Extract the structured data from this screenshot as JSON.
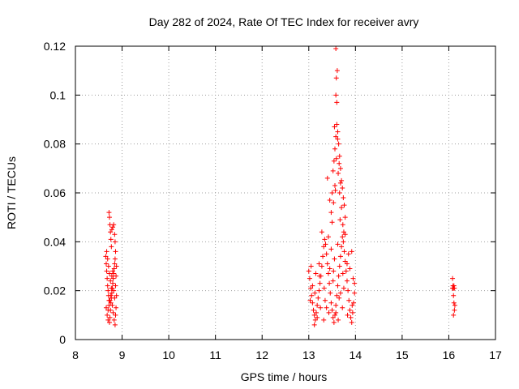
{
  "chart_data": {
    "type": "scatter",
    "title": "Day 282 of 2024, Rate Of TEC Index for receiver avry",
    "xlabel": "GPS time / hours",
    "ylabel": "ROTI / TECUs",
    "xlim": [
      8,
      17
    ],
    "ylim": [
      0,
      0.12
    ],
    "xticks": [
      "8",
      "9",
      "10",
      "11",
      "12",
      "13",
      "14",
      "15",
      "16",
      "17"
    ],
    "yticks": [
      "0",
      "0.02",
      "0.04",
      "0.06",
      "0.08",
      "0.1",
      "0.12"
    ],
    "grid": true,
    "marker": "+",
    "color": "#ff0000",
    "series": [
      {
        "name": "ROTI",
        "points": [
          [
            8.65,
            0.034
          ],
          [
            8.66,
            0.031
          ],
          [
            8.67,
            0.028
          ],
          [
            8.68,
            0.025
          ],
          [
            8.69,
            0.022
          ],
          [
            8.7,
            0.02
          ],
          [
            8.71,
            0.018
          ],
          [
            8.72,
            0.016
          ],
          [
            8.66,
            0.013
          ],
          [
            8.68,
            0.01
          ],
          [
            8.7,
            0.008
          ],
          [
            8.73,
            0.007
          ],
          [
            8.74,
            0.009
          ],
          [
            8.75,
            0.012
          ],
          [
            8.76,
            0.015
          ],
          [
            8.77,
            0.017
          ],
          [
            8.78,
            0.019
          ],
          [
            8.79,
            0.021
          ],
          [
            8.8,
            0.023
          ],
          [
            8.81,
            0.025
          ],
          [
            8.82,
            0.027
          ],
          [
            8.83,
            0.029
          ],
          [
            8.84,
            0.031
          ],
          [
            8.85,
            0.033
          ],
          [
            8.72,
            0.052
          ],
          [
            8.73,
            0.05
          ],
          [
            8.74,
            0.047
          ],
          [
            8.75,
            0.044
          ],
          [
            8.76,
            0.041
          ],
          [
            8.77,
            0.038
          ],
          [
            8.78,
            0.045
          ],
          [
            8.8,
            0.046
          ],
          [
            8.82,
            0.047
          ],
          [
            8.84,
            0.043
          ],
          [
            8.85,
            0.04
          ],
          [
            8.86,
            0.036
          ],
          [
            8.67,
            0.036
          ],
          [
            8.69,
            0.033
          ],
          [
            8.71,
            0.03
          ],
          [
            8.73,
            0.027
          ],
          [
            8.75,
            0.024
          ],
          [
            8.77,
            0.021
          ],
          [
            8.79,
            0.014
          ],
          [
            8.81,
            0.011
          ],
          [
            8.83,
            0.008
          ],
          [
            8.85,
            0.006
          ],
          [
            8.86,
            0.01
          ],
          [
            8.87,
            0.013
          ],
          [
            8.88,
            0.018
          ],
          [
            8.7,
            0.012
          ],
          [
            8.72,
            0.014
          ],
          [
            8.74,
            0.016
          ],
          [
            8.76,
            0.018
          ],
          [
            8.78,
            0.026
          ],
          [
            8.8,
            0.028
          ],
          [
            8.82,
            0.02
          ],
          [
            8.84,
            0.017
          ],
          [
            8.86,
            0.022
          ],
          [
            8.87,
            0.026
          ],
          [
            8.88,
            0.03
          ],
          [
            13.0,
            0.028
          ],
          [
            13.02,
            0.025
          ],
          [
            13.04,
            0.021
          ],
          [
            13.06,
            0.018
          ],
          [
            13.08,
            0.015
          ],
          [
            13.1,
            0.012
          ],
          [
            13.12,
            0.01
          ],
          [
            13.14,
            0.008
          ],
          [
            13.16,
            0.011
          ],
          [
            13.18,
            0.014
          ],
          [
            13.2,
            0.017
          ],
          [
            13.22,
            0.02
          ],
          [
            13.24,
            0.023
          ],
          [
            13.26,
            0.026
          ],
          [
            13.28,
            0.03
          ],
          [
            13.3,
            0.034
          ],
          [
            13.32,
            0.038
          ],
          [
            13.34,
            0.041
          ],
          [
            13.36,
            0.039
          ],
          [
            13.38,
            0.035
          ],
          [
            13.4,
            0.031
          ],
          [
            13.42,
            0.027
          ],
          [
            13.44,
            0.023
          ],
          [
            13.46,
            0.019
          ],
          [
            13.48,
            0.015
          ],
          [
            13.5,
            0.012
          ],
          [
            13.52,
            0.009
          ],
          [
            13.54,
            0.007
          ],
          [
            13.56,
            0.01
          ],
          [
            13.58,
            0.014
          ],
          [
            13.6,
            0.018
          ],
          [
            13.62,
            0.022
          ],
          [
            13.64,
            0.026
          ],
          [
            13.66,
            0.03
          ],
          [
            13.68,
            0.034
          ],
          [
            13.7,
            0.038
          ],
          [
            13.72,
            0.042
          ],
          [
            13.74,
            0.04
          ],
          [
            13.76,
            0.036
          ],
          [
            13.78,
            0.032
          ],
          [
            13.8,
            0.028
          ],
          [
            13.82,
            0.024
          ],
          [
            13.84,
            0.02
          ],
          [
            13.86,
            0.016
          ],
          [
            13.88,
            0.012
          ],
          [
            13.9,
            0.009
          ],
          [
            13.92,
            0.007
          ],
          [
            13.94,
            0.011
          ],
          [
            13.96,
            0.015
          ],
          [
            13.98,
            0.019
          ],
          [
            13.05,
            0.03
          ],
          [
            13.15,
            0.027
          ],
          [
            13.25,
            0.013
          ],
          [
            13.35,
            0.016
          ],
          [
            13.45,
            0.029
          ],
          [
            13.55,
            0.033
          ],
          [
            13.65,
            0.017
          ],
          [
            13.75,
            0.021
          ],
          [
            13.85,
            0.035
          ],
          [
            13.95,
            0.025
          ],
          [
            13.08,
            0.022
          ],
          [
            13.18,
            0.009
          ],
          [
            13.28,
            0.044
          ],
          [
            13.38,
            0.013
          ],
          [
            13.48,
            0.037
          ],
          [
            13.58,
            0.011
          ],
          [
            13.68,
            0.019
          ],
          [
            13.78,
            0.043
          ],
          [
            13.88,
            0.029
          ],
          [
            13.98,
            0.023
          ],
          [
            13.12,
            0.006
          ],
          [
            13.22,
            0.031
          ],
          [
            13.32,
            0.008
          ],
          [
            13.42,
            0.042
          ],
          [
            13.52,
            0.024
          ],
          [
            13.62,
            0.039
          ],
          [
            13.72,
            0.013
          ],
          [
            13.82,
            0.031
          ],
          [
            13.92,
            0.036
          ],
          [
            13.03,
            0.016
          ],
          [
            13.13,
            0.019
          ],
          [
            13.23,
            0.026
          ],
          [
            13.33,
            0.021
          ],
          [
            13.43,
            0.011
          ],
          [
            13.53,
            0.028
          ],
          [
            13.63,
            0.008
          ],
          [
            13.73,
            0.027
          ],
          [
            13.83,
            0.01
          ],
          [
            13.93,
            0.014
          ],
          [
            13.4,
            0.066
          ],
          [
            13.45,
            0.057
          ],
          [
            13.48,
            0.052
          ],
          [
            13.5,
            0.06
          ],
          [
            13.52,
            0.069
          ],
          [
            13.54,
            0.073
          ],
          [
            13.56,
            0.078
          ],
          [
            13.58,
            0.083
          ],
          [
            13.6,
            0.088
          ],
          [
            13.62,
            0.085
          ],
          [
            13.64,
            0.08
          ],
          [
            13.66,
            0.075
          ],
          [
            13.68,
            0.07
          ],
          [
            13.7,
            0.065
          ],
          [
            13.72,
            0.062
          ],
          [
            13.74,
            0.058
          ],
          [
            13.76,
            0.055
          ],
          [
            13.78,
            0.05
          ],
          [
            13.55,
            0.087
          ],
          [
            13.58,
            0.1
          ],
          [
            13.6,
            0.097
          ],
          [
            13.59,
            0.107
          ],
          [
            13.61,
            0.11
          ],
          [
            13.58,
            0.119
          ],
          [
            13.62,
            0.082
          ],
          [
            13.65,
            0.072
          ],
          [
            13.68,
            0.064
          ],
          [
            13.56,
            0.063
          ],
          [
            13.59,
            0.074
          ],
          [
            13.63,
            0.068
          ],
          [
            13.66,
            0.06
          ],
          [
            13.7,
            0.054
          ],
          [
            13.73,
            0.047
          ],
          [
            13.5,
            0.048
          ],
          [
            13.53,
            0.056
          ],
          [
            13.57,
            0.061
          ],
          [
            13.75,
            0.044
          ],
          [
            13.67,
            0.049
          ],
          [
            16.08,
            0.025
          ],
          [
            16.09,
            0.021
          ],
          [
            16.1,
            0.018
          ],
          [
            16.11,
            0.015
          ],
          [
            16.12,
            0.012
          ],
          [
            16.1,
            0.01
          ],
          [
            16.09,
            0.022
          ],
          [
            16.11,
            0.022
          ],
          [
            16.08,
            0.021
          ],
          [
            16.12,
            0.021
          ],
          [
            16.1,
            0.021
          ],
          [
            16.13,
            0.014
          ]
        ]
      }
    ]
  }
}
